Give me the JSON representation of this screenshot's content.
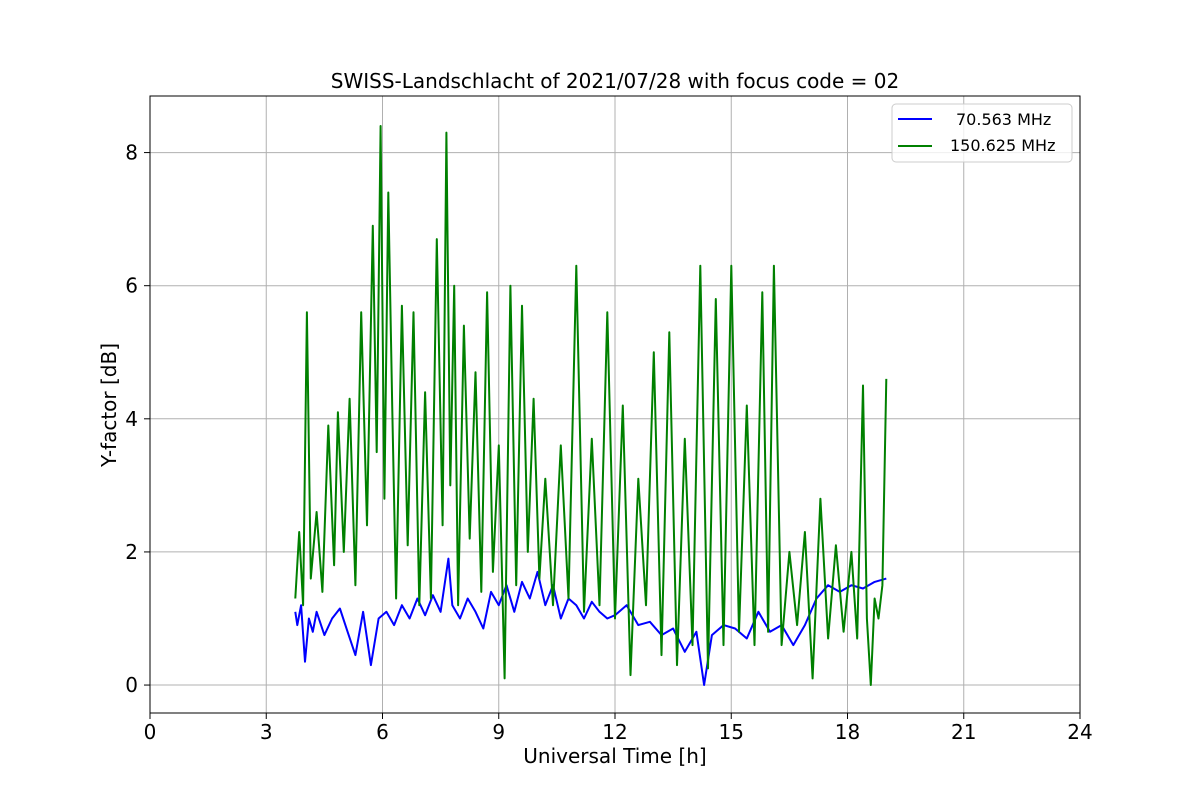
{
  "chart_data": {
    "type": "line",
    "title": "SWISS-Landschlacht of 2021/07/28 with focus code = 02",
    "xlabel": "Universal Time [h]",
    "ylabel": "Y-factor [dB]",
    "xlim": [
      0,
      24
    ],
    "ylim": [
      -0.42,
      8.85
    ],
    "xticks": [
      0,
      3,
      6,
      9,
      12,
      15,
      18,
      21,
      24
    ],
    "yticks": [
      0,
      2,
      4,
      6,
      8
    ],
    "grid": true,
    "legend_position": "top-right",
    "series": [
      {
        "name": "70.563 MHz",
        "color": "#0000ff",
        "x": [
          3.75,
          3.8,
          3.9,
          4.0,
          4.1,
          4.2,
          4.3,
          4.5,
          4.7,
          4.9,
          5.1,
          5.3,
          5.5,
          5.7,
          5.9,
          6.1,
          6.3,
          6.5,
          6.7,
          6.9,
          7.1,
          7.3,
          7.5,
          7.7,
          7.8,
          8.0,
          8.2,
          8.4,
          8.6,
          8.8,
          9.0,
          9.2,
          9.4,
          9.6,
          9.8,
          10.0,
          10.2,
          10.4,
          10.6,
          10.8,
          11.0,
          11.2,
          11.4,
          11.6,
          11.8,
          12.0,
          12.3,
          12.6,
          12.9,
          13.2,
          13.5,
          13.8,
          14.1,
          14.3,
          14.5,
          14.8,
          15.1,
          15.4,
          15.7,
          16.0,
          16.3,
          16.6,
          16.9,
          17.2,
          17.5,
          17.8,
          18.1,
          18.4,
          18.7,
          19.0
        ],
        "y": [
          1.1,
          0.9,
          1.2,
          0.35,
          1.0,
          0.8,
          1.1,
          0.75,
          1.0,
          1.15,
          0.8,
          0.45,
          1.1,
          0.3,
          1.0,
          1.1,
          0.9,
          1.2,
          1.0,
          1.3,
          1.05,
          1.35,
          1.1,
          1.9,
          1.2,
          1.0,
          1.3,
          1.1,
          0.85,
          1.4,
          1.2,
          1.5,
          1.1,
          1.55,
          1.3,
          1.7,
          1.2,
          1.5,
          1.0,
          1.3,
          1.2,
          1.0,
          1.25,
          1.1,
          1.0,
          1.05,
          1.2,
          0.9,
          0.95,
          0.75,
          0.85,
          0.5,
          0.8,
          0.0,
          0.75,
          0.9,
          0.85,
          0.7,
          1.1,
          0.8,
          0.9,
          0.6,
          0.9,
          1.3,
          1.5,
          1.4,
          1.5,
          1.45,
          1.55,
          1.6
        ]
      },
      {
        "name": "150.625 MHz",
        "color": "#008000",
        "x": [
          3.75,
          3.85,
          3.95,
          4.05,
          4.15,
          4.3,
          4.45,
          4.6,
          4.75,
          4.85,
          5.0,
          5.15,
          5.3,
          5.45,
          5.6,
          5.75,
          5.85,
          5.95,
          6.05,
          6.15,
          6.25,
          6.35,
          6.5,
          6.65,
          6.8,
          6.95,
          7.1,
          7.25,
          7.4,
          7.55,
          7.65,
          7.75,
          7.85,
          7.95,
          8.1,
          8.25,
          8.4,
          8.55,
          8.7,
          8.85,
          9.0,
          9.15,
          9.3,
          9.45,
          9.6,
          9.75,
          9.9,
          10.05,
          10.2,
          10.4,
          10.6,
          10.8,
          11.0,
          11.2,
          11.4,
          11.6,
          11.8,
          12.0,
          12.2,
          12.4,
          12.6,
          12.8,
          13.0,
          13.2,
          13.4,
          13.6,
          13.8,
          14.0,
          14.2,
          14.4,
          14.6,
          14.8,
          15.0,
          15.2,
          15.4,
          15.6,
          15.8,
          15.95,
          16.1,
          16.3,
          16.5,
          16.7,
          16.9,
          17.1,
          17.3,
          17.5,
          17.7,
          17.9,
          18.1,
          18.25,
          18.4,
          18.5,
          18.6,
          18.7,
          18.8,
          18.9,
          19.0
        ],
        "y": [
          1.3,
          2.3,
          1.2,
          5.6,
          1.6,
          2.6,
          1.4,
          3.9,
          1.8,
          4.1,
          2.0,
          4.3,
          1.5,
          5.6,
          2.4,
          6.9,
          3.5,
          8.4,
          2.8,
          7.4,
          4.2,
          1.3,
          5.7,
          2.1,
          5.6,
          1.2,
          4.4,
          1.3,
          6.7,
          2.4,
          8.3,
          3.0,
          6.0,
          1.2,
          5.4,
          2.2,
          4.7,
          1.4,
          5.9,
          1.7,
          3.6,
          0.1,
          6.0,
          1.5,
          5.7,
          2.0,
          4.3,
          1.6,
          3.1,
          1.2,
          3.6,
          1.3,
          6.3,
          1.1,
          3.7,
          1.2,
          5.6,
          1.0,
          4.2,
          0.15,
          3.1,
          1.2,
          5.0,
          0.45,
          5.3,
          0.3,
          3.7,
          0.6,
          6.3,
          0.25,
          5.8,
          0.6,
          6.3,
          0.8,
          4.2,
          0.6,
          5.9,
          0.8,
          6.3,
          0.6,
          2.0,
          0.9,
          2.3,
          0.1,
          2.8,
          0.7,
          2.1,
          0.8,
          2.0,
          0.7,
          4.5,
          1.0,
          0.0,
          1.3,
          1.0,
          1.5,
          4.6
        ]
      }
    ]
  }
}
